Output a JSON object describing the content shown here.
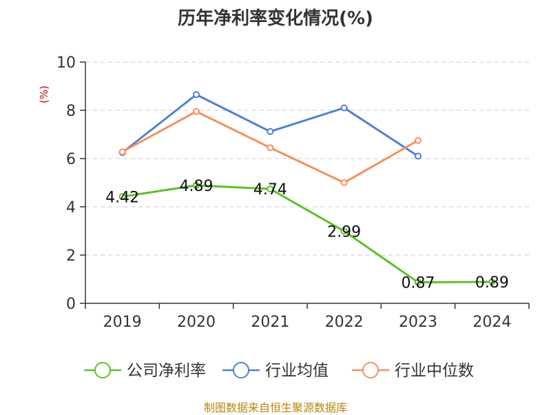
{
  "chart_data": {
    "type": "line",
    "title": "历年净利率变化情况(%)",
    "ylabel": "(%)",
    "categories": [
      "2019",
      "2020",
      "2021",
      "2022",
      "2023",
      "2024"
    ],
    "ylim": [
      0,
      10
    ],
    "yticks": [
      0,
      2,
      4,
      6,
      8,
      10
    ],
    "grid": true,
    "legend_position": "bottom",
    "series": [
      {
        "name": "公司净利率",
        "color": "#5cbf2a",
        "values": [
          4.42,
          4.89,
          4.74,
          2.99,
          0.87,
          0.89
        ],
        "labels": [
          "4.42",
          "4.89",
          "4.74",
          "2.99",
          "0.87",
          "0.89"
        ]
      },
      {
        "name": "行业均值",
        "color": "#4f7fd4",
        "values": [
          6.25,
          8.65,
          7.12,
          8.1,
          6.1,
          null
        ]
      },
      {
        "name": "行业中位数",
        "color": "#f5905c",
        "values": [
          6.28,
          7.95,
          6.45,
          5.0,
          6.75,
          null
        ]
      }
    ]
  },
  "source": "制图数据来自恒生聚源数据库"
}
